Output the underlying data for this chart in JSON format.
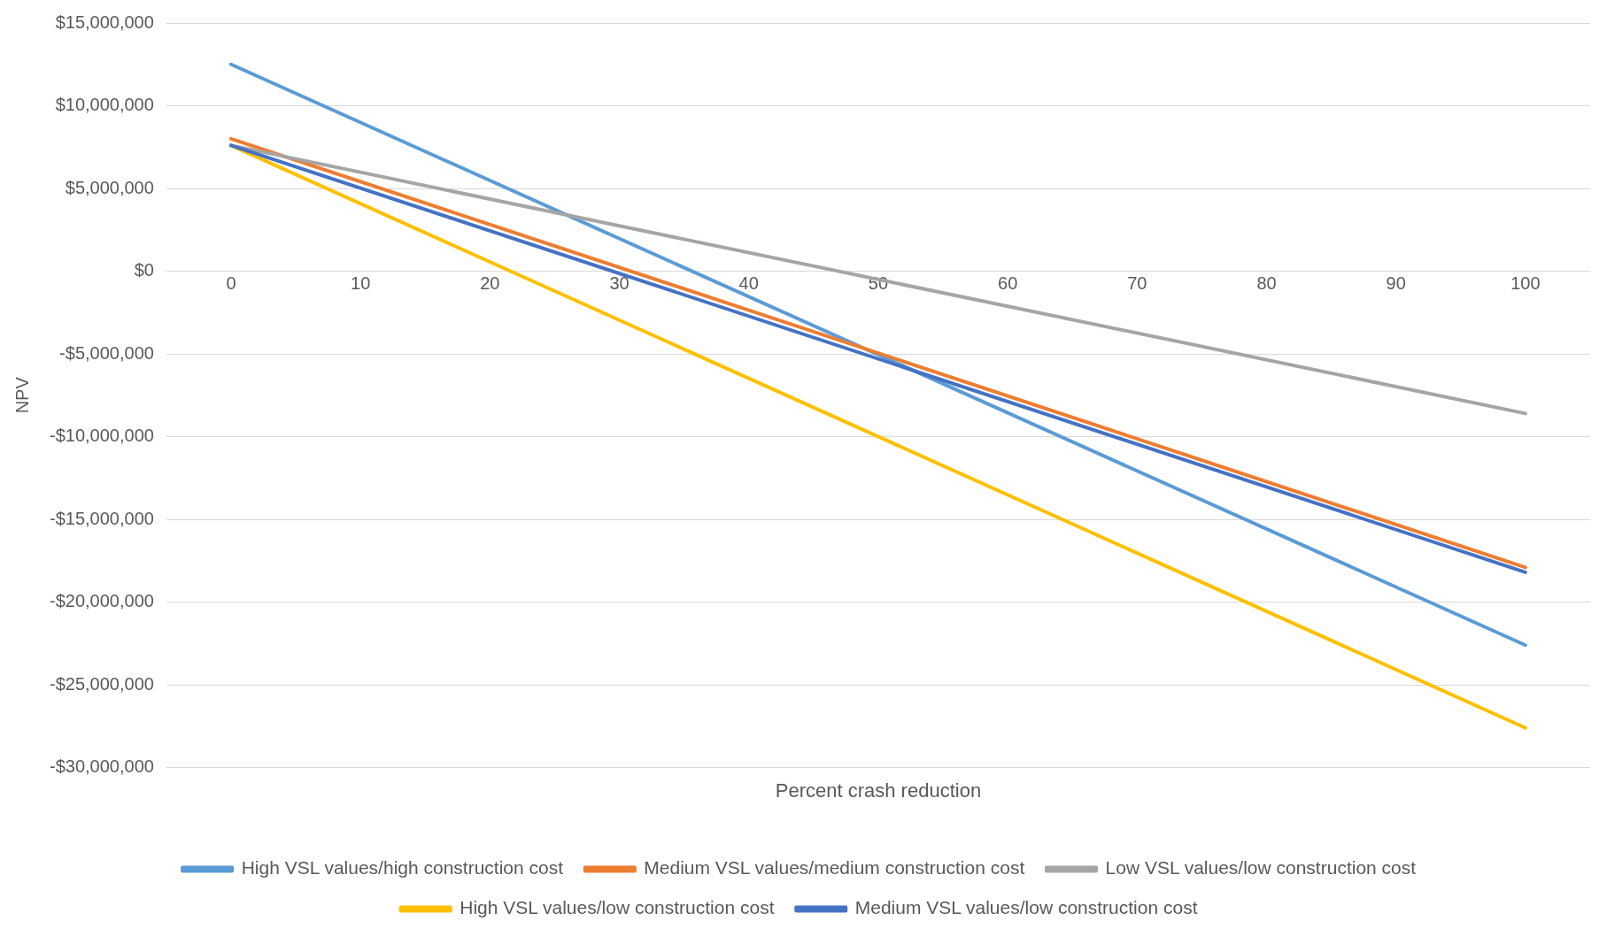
{
  "chart_data": {
    "type": "line",
    "xlabel": "Percent crash reduction",
    "ylabel": "NPV",
    "x": [
      0,
      100
    ],
    "xlim": [
      -5,
      105
    ],
    "xticks": [
      0,
      10,
      20,
      30,
      40,
      50,
      60,
      70,
      80,
      90,
      100
    ],
    "ylim": [
      -30000000,
      15000000
    ],
    "yticks": [
      {
        "value": -30000000,
        "label": "-$30,000,000"
      },
      {
        "value": -25000000,
        "label": "-$25,000,000"
      },
      {
        "value": -20000000,
        "label": "-$20,000,000"
      },
      {
        "value": -15000000,
        "label": "-$15,000,000"
      },
      {
        "value": -10000000,
        "label": "-$10,000,000"
      },
      {
        "value": -5000000,
        "label": "-$5,000,000"
      },
      {
        "value": 0,
        "label": "$0"
      },
      {
        "value": 5000000,
        "label": "$5,000,000"
      },
      {
        "value": 10000000,
        "label": "$10,000,000"
      },
      {
        "value": 15000000,
        "label": "$15,000,000"
      }
    ],
    "grid": "y",
    "legend": "bottom",
    "marker": "none",
    "line_style": "solid",
    "series": [
      {
        "name": "High VSL values/high construction cost",
        "color": "#5b9bd5",
        "values": [
          12500000,
          -22600000
        ]
      },
      {
        "name": "Medium VSL values/medium construction cost",
        "color": "#ed7d31",
        "values": [
          8000000,
          -17900000
        ]
      },
      {
        "name": "Low VSL values/low construction cost",
        "color": "#a5a5a5",
        "values": [
          7600000,
          -8600000
        ]
      },
      {
        "name": "High VSL values/low construction cost",
        "color": "#ffc000",
        "values": [
          7600000,
          -27600000
        ]
      },
      {
        "name": "Medium VSL values/low construction cost",
        "color": "#4472c4",
        "values": [
          7600000,
          -18200000
        ]
      }
    ]
  }
}
